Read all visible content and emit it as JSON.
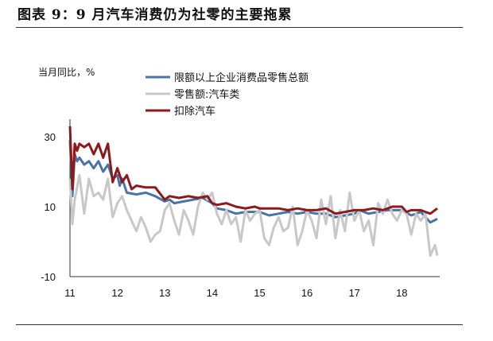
{
  "figure_title": "图表 9：9 月汽车消费仍为社零的主要拖累",
  "chart_data": {
    "type": "line",
    "ylabel": "当月同比，%",
    "ylim": [
      -10,
      35
    ],
    "yticks": [
      -10,
      10,
      30
    ],
    "xticks": [
      "11",
      "12",
      "13",
      "14",
      "15",
      "16",
      "17",
      "18"
    ],
    "xlim": [
      2011.0,
      2018.8
    ],
    "grid": false,
    "legend_position": "top",
    "series": [
      {
        "name": "限额以上企业消费品零售总额",
        "color": "#4a74a8",
        "x": [
          2011.0,
          2011.05,
          2011.1,
          2011.15,
          2011.2,
          2011.3,
          2011.4,
          2011.5,
          2011.6,
          2011.7,
          2011.8,
          2011.9,
          2012.0,
          2012.05,
          2012.1,
          2012.2,
          2012.4,
          2012.6,
          2012.8,
          2013.0,
          2013.1,
          2013.2,
          2013.4,
          2013.6,
          2013.8,
          2014.0,
          2014.1,
          2014.3,
          2014.5,
          2014.7,
          2014.9,
          2015.0,
          2015.2,
          2015.4,
          2015.6,
          2015.8,
          2016.0,
          2016.2,
          2016.4,
          2016.6,
          2016.8,
          2017.0,
          2017.1,
          2017.3,
          2017.5,
          2017.7,
          2017.9,
          2018.0,
          2018.2,
          2018.4,
          2018.6,
          2018.75
        ],
        "y": [
          29,
          13,
          25,
          23,
          24,
          22,
          23,
          21,
          23,
          20,
          22,
          18,
          19,
          16,
          18,
          14,
          13.5,
          14,
          13,
          11.5,
          12,
          11,
          11.5,
          12,
          12.5,
          11,
          9.5,
          9,
          8,
          8.5,
          8.5,
          8.5,
          7.5,
          8,
          8.5,
          8,
          8.5,
          8,
          8,
          7,
          7.5,
          8,
          9,
          8,
          8.5,
          9,
          9,
          9,
          7.5,
          8.5,
          5.5,
          6.5
        ]
      },
      {
        "name": "零售额:汽车类",
        "color": "#c8c8c8",
        "x": [
          2011.0,
          2011.05,
          2011.1,
          2011.2,
          2011.3,
          2011.4,
          2011.5,
          2011.6,
          2011.7,
          2011.8,
          2011.9,
          2012.0,
          2012.1,
          2012.2,
          2012.3,
          2012.4,
          2012.5,
          2012.6,
          2012.7,
          2012.8,
          2012.9,
          2013.0,
          2013.1,
          2013.2,
          2013.3,
          2013.4,
          2013.5,
          2013.6,
          2013.7,
          2013.8,
          2013.9,
          2014.0,
          2014.1,
          2014.2,
          2014.3,
          2014.4,
          2014.5,
          2014.6,
          2014.7,
          2014.8,
          2014.9,
          2015.0,
          2015.1,
          2015.2,
          2015.3,
          2015.4,
          2015.5,
          2015.6,
          2015.7,
          2015.8,
          2015.9,
          2016.0,
          2016.1,
          2016.2,
          2016.3,
          2016.4,
          2016.5,
          2016.6,
          2016.7,
          2016.8,
          2016.9,
          2017.0,
          2017.1,
          2017.2,
          2017.3,
          2017.4,
          2017.5,
          2017.6,
          2017.7,
          2017.8,
          2017.9,
          2018.0,
          2018.1,
          2018.2,
          2018.3,
          2018.4,
          2018.5,
          2018.6,
          2018.7,
          2018.75
        ],
        "y": [
          18,
          5,
          12,
          19,
          8,
          18,
          13,
          14,
          12,
          18,
          7,
          11,
          13,
          9,
          6,
          3,
          7,
          4,
          0,
          2,
          3,
          9,
          11,
          6,
          2,
          9,
          6,
          2,
          10,
          14,
          12,
          14,
          8,
          5,
          9,
          5,
          7,
          0,
          9,
          6,
          8,
          9,
          1,
          -1,
          4,
          7,
          3,
          4,
          10,
          -1,
          3,
          9,
          6,
          1,
          12,
          5,
          13,
          1,
          9,
          3,
          14,
          6,
          9,
          3,
          6,
          -1,
          11,
          8,
          12,
          8,
          6,
          9,
          8,
          2,
          8,
          6,
          8,
          -4,
          -1,
          -4
        ]
      },
      {
        "name": "扣除汽车",
        "color": "#8b1a1a",
        "x": [
          2011.0,
          2011.05,
          2011.1,
          2011.15,
          2011.2,
          2011.3,
          2011.4,
          2011.5,
          2011.6,
          2011.7,
          2011.8,
          2011.9,
          2012.0,
          2012.1,
          2012.2,
          2012.3,
          2012.4,
          2012.6,
          2012.8,
          2013.0,
          2013.1,
          2013.3,
          2013.5,
          2013.7,
          2013.9,
          2014.0,
          2014.1,
          2014.3,
          2014.5,
          2014.7,
          2014.9,
          2015.0,
          2015.2,
          2015.4,
          2015.6,
          2015.8,
          2016.0,
          2016.2,
          2016.4,
          2016.6,
          2016.8,
          2017.0,
          2017.2,
          2017.4,
          2017.6,
          2017.8,
          2018.0,
          2018.1,
          2018.2,
          2018.3,
          2018.4,
          2018.5,
          2018.6,
          2018.75
        ],
        "y": [
          33,
          15,
          28,
          26,
          28,
          27,
          28,
          25,
          28,
          24,
          28,
          17,
          21,
          17,
          19,
          15,
          16,
          15.5,
          15.5,
          12,
          13,
          12.5,
          13,
          12.5,
          13,
          11,
          10.5,
          11,
          10,
          9.5,
          10,
          9.5,
          9.5,
          9.5,
          9,
          9.5,
          9,
          9,
          9.5,
          8,
          8.5,
          9,
          9,
          9.5,
          9,
          10,
          10,
          8.5,
          9,
          9,
          9,
          8.5,
          8,
          9.5
        ]
      }
    ]
  }
}
